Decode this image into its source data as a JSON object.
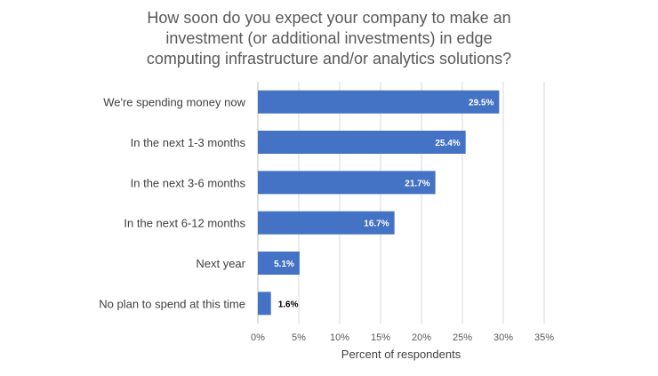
{
  "chart_data": {
    "type": "bar",
    "orientation": "horizontal",
    "title_lines": [
      "How soon do you expect your company to make an",
      "investment (or additional investments) in edge",
      "computing infrastructure and/or analytics solutions?"
    ],
    "categories": [
      "We're spending money now",
      "In the next 1-3 months",
      "In the next 3-6 months",
      "In the next 6-12 months",
      "Next year",
      "No plan to spend at this time"
    ],
    "values": [
      29.5,
      25.4,
      21.7,
      16.7,
      5.1,
      1.6
    ],
    "data_labels": [
      "29.5%",
      "25.4%",
      "21.7%",
      "16.7%",
      "5.1%",
      "1.6%"
    ],
    "xlabel": "Percent of respondents",
    "ylabel": "",
    "xlim": [
      0,
      35
    ],
    "x_ticks": [
      0,
      5,
      10,
      15,
      20,
      25,
      30,
      35
    ],
    "x_tick_labels": [
      "0%",
      "5%",
      "10%",
      "15%",
      "20%",
      "25%",
      "30%",
      "35%"
    ],
    "grid": "vertical",
    "colors": {
      "bar": "#4472c4",
      "label_inside": "#ffffff",
      "label_outside": "#000000"
    }
  }
}
